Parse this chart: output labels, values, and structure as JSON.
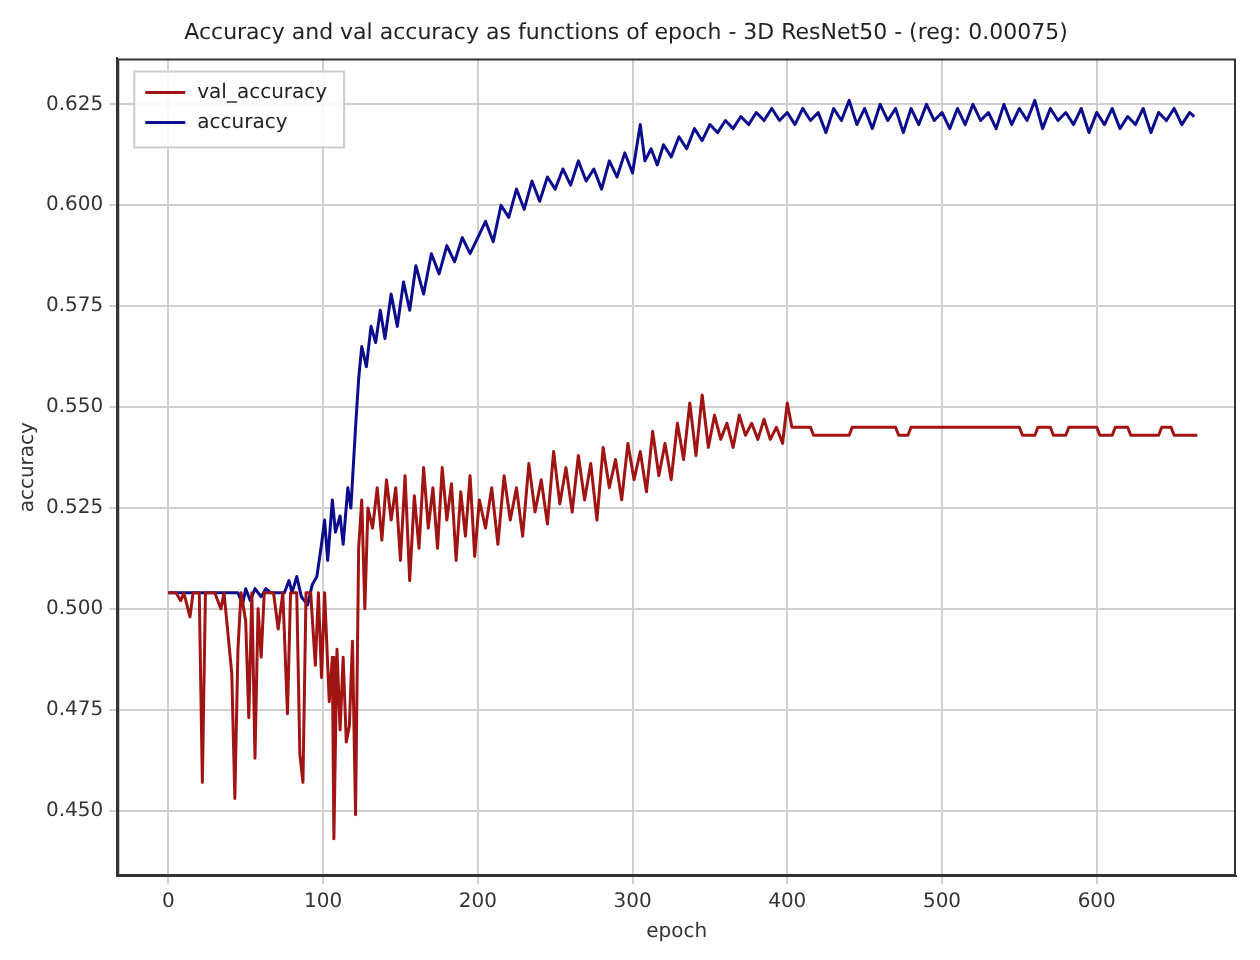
{
  "chart_data": {
    "type": "line",
    "title": "Accuracy and val accuracy as functions of epoch - 3D ResNet50 - (reg: 0.00075)",
    "xlabel": "epoch",
    "ylabel": "accuracy",
    "xlim": [
      -33,
      690
    ],
    "xticks": [
      0,
      100,
      200,
      300,
      400,
      500,
      600
    ],
    "ylim": [
      0.4338,
      0.6364
    ],
    "yticks": [
      {
        "value": 0.45,
        "label": "0.450"
      },
      {
        "value": 0.475,
        "label": "0.475"
      },
      {
        "value": 0.5,
        "label": "0.500"
      },
      {
        "value": 0.525,
        "label": "0.525"
      },
      {
        "value": 0.55,
        "label": "0.550"
      },
      {
        "value": 0.575,
        "label": "0.575"
      },
      {
        "value": 0.6,
        "label": "0.600"
      },
      {
        "value": 0.625,
        "label": "0.625"
      }
    ],
    "grid": true,
    "legend": "top left",
    "marker": "none",
    "line_style": "solid",
    "series": [
      {
        "name": "val_accuracy",
        "color": "#a01414",
        "x": [
          0,
          5,
          8,
          10,
          14,
          16,
          20,
          22,
          24,
          30,
          34,
          36,
          41,
          43,
          45,
          47,
          50,
          52,
          54,
          56,
          58,
          60,
          62,
          68,
          71,
          74,
          77,
          79,
          83,
          85,
          87,
          89,
          92,
          95,
          97,
          99,
          101,
          104,
          106,
          107,
          109,
          111,
          113,
          115,
          117,
          119,
          121,
          123,
          125,
          127,
          129,
          132,
          135,
          138,
          141,
          144,
          147,
          150,
          153,
          156,
          159,
          162,
          165,
          168,
          171,
          174,
          177,
          180,
          183,
          186,
          189,
          192,
          195,
          198,
          201,
          205,
          209,
          213,
          217,
          221,
          225,
          229,
          233,
          237,
          241,
          245,
          249,
          253,
          257,
          261,
          265,
          269,
          273,
          277,
          281,
          285,
          289,
          293,
          297,
          301,
          305,
          309,
          313,
          317,
          321,
          325,
          329,
          333,
          337,
          341,
          345,
          349,
          353,
          357,
          361,
          365,
          369,
          373,
          377,
          381,
          385,
          389,
          393,
          397,
          400,
          403,
          410,
          415,
          417,
          440,
          442,
          470,
          472,
          478,
          480,
          550,
          552,
          560,
          562,
          570,
          572,
          580,
          582,
          600,
          602,
          610,
          612,
          620,
          622,
          640,
          642,
          648,
          650,
          665
        ],
        "values": [
          0.504,
          0.504,
          0.502,
          0.504,
          0.498,
          0.504,
          0.504,
          0.457,
          0.504,
          0.504,
          0.5,
          0.504,
          0.484,
          0.453,
          0.49,
          0.504,
          0.497,
          0.473,
          0.504,
          0.463,
          0.5,
          0.488,
          0.504,
          0.504,
          0.495,
          0.504,
          0.474,
          0.504,
          0.504,
          0.464,
          0.457,
          0.504,
          0.504,
          0.486,
          0.504,
          0.483,
          0.504,
          0.477,
          0.488,
          0.443,
          0.49,
          0.47,
          0.488,
          0.467,
          0.471,
          0.492,
          0.449,
          0.515,
          0.527,
          0.5,
          0.525,
          0.52,
          0.53,
          0.517,
          0.532,
          0.522,
          0.53,
          0.512,
          0.533,
          0.507,
          0.528,
          0.515,
          0.535,
          0.52,
          0.53,
          0.515,
          0.535,
          0.522,
          0.531,
          0.512,
          0.529,
          0.518,
          0.533,
          0.513,
          0.527,
          0.52,
          0.53,
          0.516,
          0.533,
          0.522,
          0.53,
          0.518,
          0.536,
          0.524,
          0.532,
          0.521,
          0.539,
          0.526,
          0.535,
          0.524,
          0.538,
          0.527,
          0.536,
          0.522,
          0.54,
          0.53,
          0.537,
          0.527,
          0.541,
          0.532,
          0.539,
          0.529,
          0.544,
          0.533,
          0.541,
          0.532,
          0.546,
          0.537,
          0.551,
          0.538,
          0.553,
          0.54,
          0.548,
          0.542,
          0.546,
          0.54,
          0.548,
          0.543,
          0.546,
          0.542,
          0.547,
          0.542,
          0.545,
          0.541,
          0.551,
          0.545,
          0.545,
          0.545,
          0.543,
          0.543,
          0.545,
          0.545,
          0.543,
          0.543,
          0.545,
          0.545,
          0.543,
          0.543,
          0.545,
          0.545,
          0.543,
          0.543,
          0.545,
          0.545,
          0.543,
          0.543,
          0.545,
          0.545,
          0.543,
          0.543,
          0.545,
          0.545,
          0.543,
          0.543
        ]
      },
      {
        "name": "accuracy",
        "color": "#0c0c8c",
        "x": [
          0,
          5,
          10,
          20,
          30,
          40,
          45,
          48,
          50,
          53,
          56,
          60,
          63,
          66,
          70,
          75,
          78,
          80,
          83,
          86,
          90,
          93,
          96,
          99,
          101,
          103,
          106,
          108,
          111,
          113,
          116,
          118,
          121,
          123,
          125,
          128,
          131,
          134,
          137,
          140,
          144,
          148,
          152,
          156,
          160,
          165,
          170,
          175,
          180,
          185,
          190,
          195,
          200,
          205,
          210,
          215,
          220,
          225,
          230,
          235,
          240,
          245,
          250,
          255,
          260,
          265,
          270,
          275,
          280,
          285,
          290,
          295,
          300,
          305,
          308,
          312,
          316,
          320,
          325,
          330,
          335,
          340,
          345,
          350,
          355,
          360,
          365,
          370,
          375,
          380,
          385,
          390,
          395,
          400,
          405,
          410,
          415,
          420,
          425,
          430,
          435,
          440,
          445,
          450,
          455,
          460,
          465,
          470,
          475,
          480,
          485,
          490,
          495,
          500,
          505,
          510,
          515,
          520,
          525,
          530,
          535,
          540,
          545,
          550,
          555,
          560,
          565,
          570,
          575,
          580,
          585,
          590,
          595,
          600,
          605,
          610,
          615,
          620,
          625,
          630,
          635,
          640,
          645,
          650,
          655,
          660,
          663
        ],
        "values": [
          0.504,
          0.504,
          0.504,
          0.504,
          0.504,
          0.504,
          0.504,
          0.501,
          0.505,
          0.502,
          0.505,
          0.503,
          0.505,
          0.504,
          0.504,
          0.504,
          0.507,
          0.504,
          0.508,
          0.503,
          0.501,
          0.506,
          0.508,
          0.516,
          0.522,
          0.512,
          0.527,
          0.519,
          0.523,
          0.516,
          0.53,
          0.525,
          0.545,
          0.557,
          0.565,
          0.56,
          0.57,
          0.566,
          0.574,
          0.567,
          0.578,
          0.57,
          0.581,
          0.574,
          0.585,
          0.578,
          0.588,
          0.583,
          0.59,
          0.586,
          0.592,
          0.588,
          0.592,
          0.596,
          0.591,
          0.6,
          0.597,
          0.604,
          0.599,
          0.606,
          0.601,
          0.607,
          0.604,
          0.609,
          0.605,
          0.611,
          0.606,
          0.609,
          0.604,
          0.611,
          0.607,
          0.613,
          0.608,
          0.62,
          0.611,
          0.614,
          0.61,
          0.615,
          0.612,
          0.617,
          0.614,
          0.619,
          0.616,
          0.62,
          0.618,
          0.621,
          0.619,
          0.622,
          0.62,
          0.623,
          0.621,
          0.624,
          0.621,
          0.623,
          0.62,
          0.624,
          0.621,
          0.623,
          0.618,
          0.624,
          0.621,
          0.626,
          0.62,
          0.624,
          0.619,
          0.625,
          0.621,
          0.624,
          0.618,
          0.624,
          0.62,
          0.625,
          0.621,
          0.623,
          0.619,
          0.624,
          0.62,
          0.625,
          0.621,
          0.623,
          0.619,
          0.625,
          0.62,
          0.624,
          0.621,
          0.626,
          0.619,
          0.624,
          0.621,
          0.623,
          0.62,
          0.624,
          0.618,
          0.623,
          0.62,
          0.624,
          0.619,
          0.622,
          0.62,
          0.624,
          0.618,
          0.623,
          0.621,
          0.624,
          0.62,
          0.623,
          0.622
        ]
      }
    ]
  }
}
